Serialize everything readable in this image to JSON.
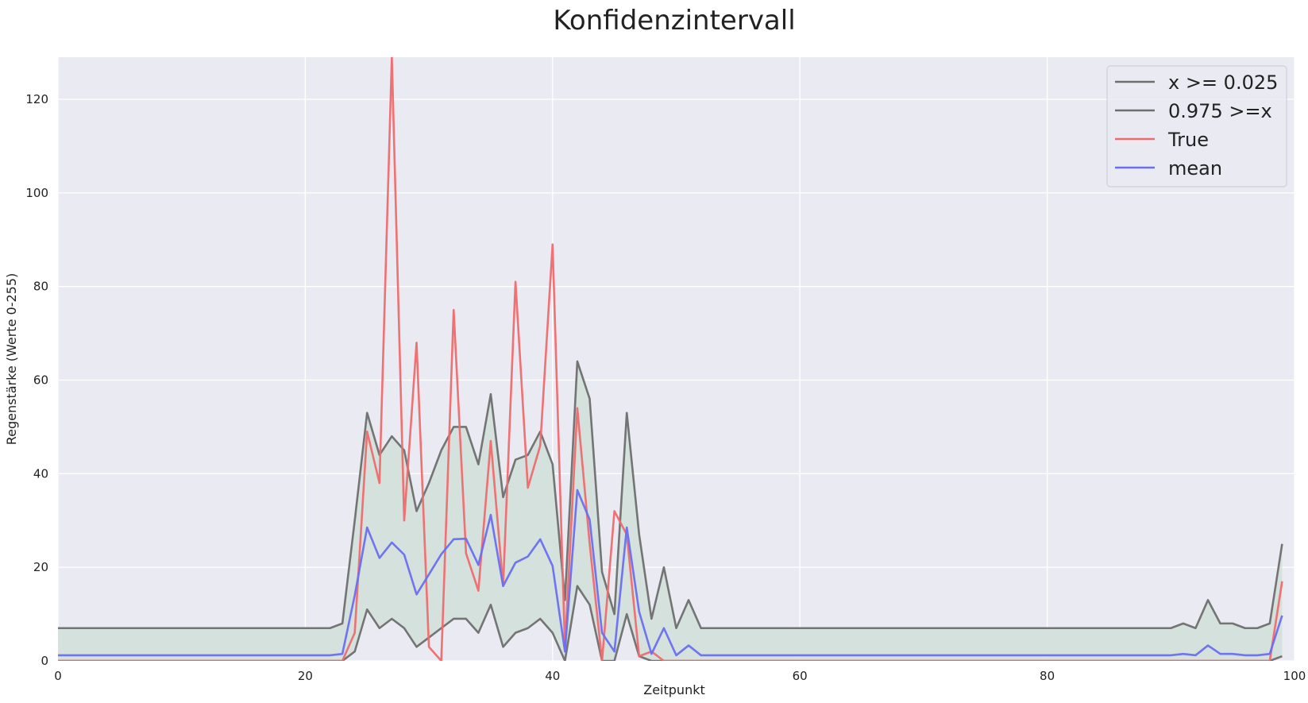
{
  "chart_data": {
    "type": "line",
    "title": "Konfidenzintervall",
    "xlabel": "Zeitpunkt",
    "ylabel": "Regenstärke (Werte 0-255)",
    "xlim": [
      0,
      100
    ],
    "ylim": [
      0,
      129
    ],
    "xticks": [
      0,
      20,
      40,
      60,
      80,
      100
    ],
    "yticks": [
      0,
      20,
      40,
      60,
      80,
      100,
      120
    ],
    "grid": true,
    "legend_position": "top-right",
    "colors": {
      "background": "#eaeaf2",
      "grid": "#ffffff",
      "band": "#d2e0d9",
      "lower": "#6e6e6e",
      "upper": "#6e6e6e",
      "true": "#ef6a6d",
      "mean": "#6a6ef0"
    },
    "x": [
      0,
      1,
      2,
      3,
      4,
      5,
      6,
      7,
      8,
      9,
      10,
      11,
      12,
      13,
      14,
      15,
      16,
      17,
      18,
      19,
      20,
      21,
      22,
      23,
      24,
      25,
      26,
      27,
      28,
      29,
      30,
      31,
      32,
      33,
      34,
      35,
      36,
      37,
      38,
      39,
      40,
      41,
      42,
      43,
      44,
      45,
      46,
      47,
      48,
      49,
      50,
      51,
      52,
      53,
      54,
      55,
      56,
      57,
      58,
      59,
      60,
      61,
      62,
      63,
      64,
      65,
      66,
      67,
      68,
      69,
      70,
      71,
      72,
      73,
      74,
      75,
      76,
      77,
      78,
      79,
      80,
      81,
      82,
      83,
      84,
      85,
      86,
      87,
      88,
      89,
      90,
      91,
      92,
      93,
      94,
      95,
      96,
      97,
      98,
      99
    ],
    "series": [
      {
        "name": "x >= 0.025",
        "key": "lower",
        "values": [
          0,
          0,
          0,
          0,
          0,
          0,
          0,
          0,
          0,
          0,
          0,
          0,
          0,
          0,
          0,
          0,
          0,
          0,
          0,
          0,
          0,
          0,
          0,
          0,
          2,
          11,
          7,
          9,
          7,
          3,
          5,
          7,
          9,
          9,
          6,
          12,
          3,
          6,
          7,
          9,
          6,
          0,
          16,
          12,
          0,
          0,
          10,
          1,
          0,
          0,
          0,
          0,
          0,
          0,
          0,
          0,
          0,
          0,
          0,
          0,
          0,
          0,
          0,
          0,
          0,
          0,
          0,
          0,
          0,
          0,
          0,
          0,
          0,
          0,
          0,
          0,
          0,
          0,
          0,
          0,
          0,
          0,
          0,
          0,
          0,
          0,
          0,
          0,
          0,
          0,
          0,
          0,
          0,
          0,
          0,
          0,
          0,
          0,
          0,
          1
        ]
      },
      {
        "name": "0.975 >=x",
        "key": "upper",
        "values": [
          7,
          7,
          7,
          7,
          7,
          7,
          7,
          7,
          7,
          7,
          7,
          7,
          7,
          7,
          7,
          7,
          7,
          7,
          7,
          7,
          7,
          7,
          7,
          8,
          30,
          53,
          44,
          48,
          45,
          32,
          38,
          45,
          50,
          50,
          42,
          57,
          35,
          43,
          44,
          49,
          42,
          13,
          64,
          56,
          19,
          10,
          53,
          27,
          9,
          20,
          7,
          13,
          7,
          7,
          7,
          7,
          7,
          7,
          7,
          7,
          7,
          7,
          7,
          7,
          7,
          7,
          7,
          7,
          7,
          7,
          7,
          7,
          7,
          7,
          7,
          7,
          7,
          7,
          7,
          7,
          7,
          7,
          7,
          7,
          7,
          7,
          7,
          7,
          7,
          7,
          7,
          8,
          7,
          13,
          8,
          8,
          7,
          7,
          8,
          25
        ]
      },
      {
        "name": "True",
        "key": "true",
        "values": [
          0,
          0,
          0,
          0,
          0,
          0,
          0,
          0,
          0,
          0,
          0,
          0,
          0,
          0,
          0,
          0,
          0,
          0,
          0,
          0,
          0,
          0,
          0,
          0,
          6,
          49,
          38,
          129,
          30,
          68,
          3,
          0,
          75,
          23,
          15,
          47,
          16,
          81,
          37,
          46,
          89,
          3,
          54,
          25,
          0,
          32,
          27,
          1,
          2,
          0,
          0,
          0,
          0,
          0,
          0,
          0,
          0,
          0,
          0,
          0,
          0,
          0,
          0,
          0,
          0,
          0,
          0,
          0,
          0,
          0,
          0,
          0,
          0,
          0,
          0,
          0,
          0,
          0,
          0,
          0,
          0,
          0,
          0,
          0,
          0,
          0,
          0,
          0,
          0,
          0,
          0,
          0,
          0,
          0,
          0,
          0,
          0,
          0,
          0,
          17
        ]
      },
      {
        "name": "mean",
        "key": "mean",
        "values": [
          1.2,
          1.2,
          1.2,
          1.2,
          1.2,
          1.2,
          1.2,
          1.2,
          1.2,
          1.2,
          1.2,
          1.2,
          1.2,
          1.2,
          1.2,
          1.2,
          1.2,
          1.2,
          1.2,
          1.2,
          1.2,
          1.2,
          1.2,
          1.5,
          14,
          28.5,
          22,
          25.3,
          22.7,
          14.2,
          18.5,
          22.8,
          26,
          26.1,
          20.5,
          31.2,
          16,
          21,
          22.3,
          26,
          20.3,
          2,
          36.5,
          30.2,
          6,
          2,
          28.5,
          10.5,
          1.5,
          7,
          1.2,
          3.3,
          1.2,
          1.2,
          1.2,
          1.2,
          1.2,
          1.2,
          1.2,
          1.2,
          1.2,
          1.2,
          1.2,
          1.2,
          1.2,
          1.2,
          1.2,
          1.2,
          1.2,
          1.2,
          1.2,
          1.2,
          1.2,
          1.2,
          1.2,
          1.2,
          1.2,
          1.2,
          1.2,
          1.2,
          1.2,
          1.2,
          1.2,
          1.2,
          1.2,
          1.2,
          1.2,
          1.2,
          1.2,
          1.2,
          1.2,
          1.5,
          1.2,
          3.3,
          1.5,
          1.5,
          1.2,
          1.2,
          1.5,
          9.7
        ]
      }
    ]
  }
}
